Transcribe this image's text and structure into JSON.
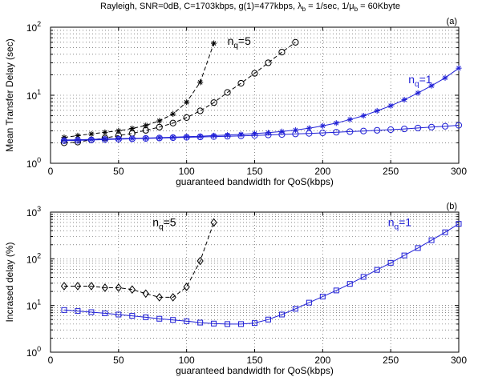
{
  "title_parts": {
    "pre": "Rayleigh, SNR=0dB, C=1703kbps, g(1)=477kbps, λ",
    "lam_sub": "b",
    "mid": " = 1/sec, 1/μ",
    "mu_sub": "b",
    "post": " = 60Kbyte"
  },
  "colors": {
    "black": "#000000",
    "blue": "#1f1fd6"
  },
  "chart_data": [
    {
      "type": "line",
      "panel_label": "(a)",
      "xlabel": "guaranteed bandwidth for QoS(kbps)",
      "ylabel": "Mean Transfer Delay (sec)",
      "xlim": [
        0,
        300
      ],
      "ylim": [
        1,
        100
      ],
      "yscale": "log",
      "grid": true,
      "x_ticks": [
        0,
        50,
        100,
        150,
        200,
        250,
        300
      ],
      "y_ticks": [
        {
          "value": 1,
          "base": "10",
          "exp": "0"
        },
        {
          "value": 10,
          "base": "10",
          "exp": "1"
        },
        {
          "value": 100,
          "base": "10",
          "exp": "2"
        }
      ],
      "annotations": [
        {
          "text": "n",
          "sub": "q",
          "rest": "=5",
          "color": "black",
          "x": 130,
          "y": 55
        },
        {
          "text": "n",
          "sub": "q",
          "rest": "=1",
          "color": "blue",
          "x": 263,
          "y": 15
        }
      ],
      "series": [
        {
          "color": "black",
          "marker": "star",
          "dash": true,
          "x": [
            10,
            20,
            30,
            40,
            50,
            60,
            70,
            80,
            90,
            100,
            110,
            120
          ],
          "y": [
            2.4,
            2.55,
            2.7,
            2.85,
            3.0,
            3.25,
            3.6,
            4.2,
            5.3,
            7.9,
            15.5,
            58
          ]
        },
        {
          "color": "black",
          "marker": "circle",
          "dash": true,
          "x": [
            10,
            20,
            30,
            40,
            50,
            60,
            70,
            80,
            90,
            100,
            110,
            120,
            130,
            140,
            150,
            160,
            170,
            180
          ],
          "y": [
            2.0,
            2.05,
            2.2,
            2.35,
            2.55,
            2.75,
            3.05,
            3.4,
            3.9,
            4.7,
            5.9,
            7.8,
            11,
            15,
            21,
            30,
            43,
            60
          ]
        },
        {
          "color": "blue",
          "marker": "star",
          "dash": false,
          "x": [
            10,
            20,
            30,
            40,
            50,
            60,
            70,
            80,
            90,
            100,
            110,
            120,
            130,
            140,
            150,
            160,
            170,
            180,
            190,
            200,
            210,
            220,
            230,
            240,
            250,
            260,
            270,
            280,
            290,
            300
          ],
          "y": [
            2.2,
            2.22,
            2.25,
            2.28,
            2.3,
            2.32,
            2.35,
            2.38,
            2.42,
            2.46,
            2.5,
            2.55,
            2.6,
            2.66,
            2.73,
            2.82,
            2.93,
            3.08,
            3.28,
            3.55,
            3.9,
            4.4,
            5.0,
            5.9,
            7.0,
            8.6,
            10.8,
            13.8,
            18.0,
            25.0
          ]
        },
        {
          "color": "blue",
          "marker": "circle",
          "dash": false,
          "x": [
            10,
            20,
            30,
            40,
            50,
            60,
            70,
            80,
            90,
            100,
            110,
            120,
            130,
            140,
            150,
            160,
            170,
            180,
            190,
            200,
            210,
            220,
            230,
            240,
            250,
            260,
            270,
            280,
            290,
            300
          ],
          "y": [
            2.15,
            2.17,
            2.2,
            2.23,
            2.26,
            2.29,
            2.32,
            2.35,
            2.38,
            2.41,
            2.44,
            2.47,
            2.5,
            2.53,
            2.57,
            2.61,
            2.65,
            2.7,
            2.75,
            2.8,
            2.86,
            2.92,
            2.98,
            3.05,
            3.12,
            3.2,
            3.3,
            3.4,
            3.5,
            3.62
          ]
        }
      ]
    },
    {
      "type": "line",
      "panel_label": "(b)",
      "xlabel": "guaranteed bandwidth for QoS(kbps)",
      "ylabel": "Incrased delay (%)",
      "xlim": [
        0,
        300
      ],
      "ylim": [
        1,
        1000
      ],
      "yscale": "log",
      "grid": true,
      "x_ticks": [
        0,
        50,
        100,
        150,
        200,
        250,
        300
      ],
      "y_ticks": [
        {
          "value": 1,
          "base": "10",
          "exp": "0"
        },
        {
          "value": 10,
          "base": "10",
          "exp": "1"
        },
        {
          "value": 100,
          "base": "10",
          "exp": "2"
        },
        {
          "value": 1000,
          "base": "10",
          "exp": "3"
        }
      ],
      "annotations": [
        {
          "text": "n",
          "sub": "q",
          "rest": "=5",
          "color": "black",
          "x": 75,
          "y": 500
        },
        {
          "text": "n",
          "sub": "q",
          "rest": "=1",
          "color": "blue",
          "x": 248,
          "y": 500
        }
      ],
      "series": [
        {
          "color": "black",
          "marker": "diamond",
          "dash": true,
          "x": [
            10,
            20,
            30,
            40,
            50,
            60,
            70,
            80,
            90,
            100,
            110,
            120
          ],
          "y": [
            26,
            26,
            26,
            24,
            24,
            22,
            18,
            15,
            15,
            25,
            90,
            600
          ]
        },
        {
          "color": "blue",
          "marker": "square",
          "dash": false,
          "x": [
            10,
            20,
            30,
            40,
            50,
            60,
            70,
            80,
            90,
            100,
            110,
            120,
            130,
            140,
            150,
            160,
            170,
            180,
            190,
            200,
            210,
            220,
            230,
            240,
            250,
            260,
            270,
            280,
            290,
            300
          ],
          "y": [
            8.0,
            7.6,
            7.2,
            6.8,
            6.4,
            6.0,
            5.6,
            5.2,
            4.9,
            4.6,
            4.3,
            4.1,
            4.0,
            4.0,
            4.2,
            5.0,
            6.4,
            8.5,
            11.5,
            15.5,
            21,
            29,
            41,
            58,
            82,
            118,
            170,
            250,
            370,
            560
          ]
        }
      ]
    }
  ]
}
